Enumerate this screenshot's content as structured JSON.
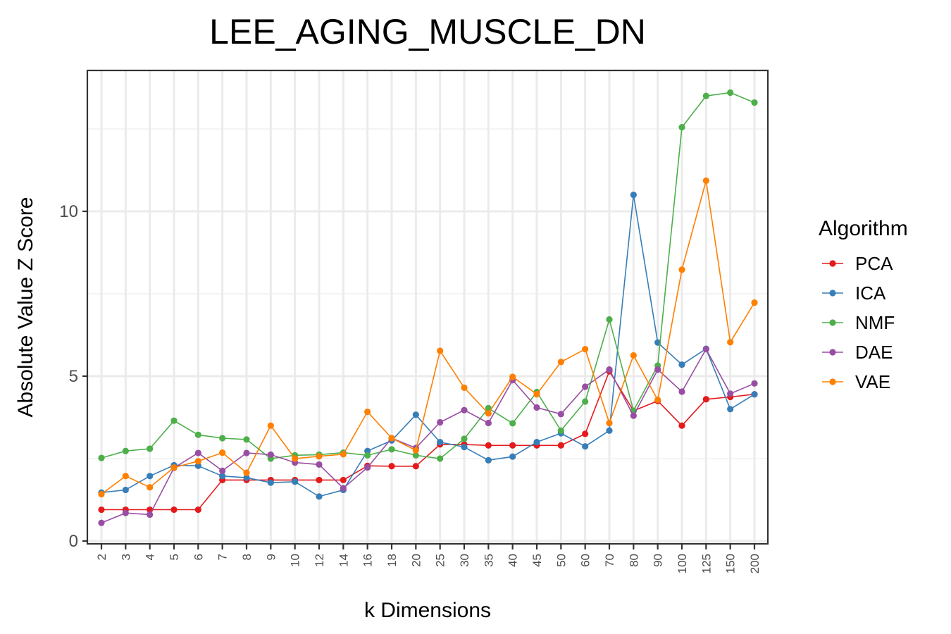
{
  "chart_data": {
    "type": "line",
    "title": "LEE_AGING_MUSCLE_DN",
    "xlabel": "k Dimensions",
    "ylabel": "Absolute Value Z Score",
    "ylim": [
      0,
      14
    ],
    "yticks": [
      0,
      5,
      10
    ],
    "grid": true,
    "legend": {
      "title": "Algorithm",
      "placement": "right"
    },
    "categories": [
      "2",
      "3",
      "4",
      "5",
      "6",
      "7",
      "8",
      "9",
      "10",
      "12",
      "14",
      "16",
      "18",
      "20",
      "25",
      "30",
      "35",
      "40",
      "45",
      "50",
      "60",
      "70",
      "80",
      "90",
      "100",
      "125",
      "150",
      "200"
    ],
    "series": [
      {
        "name": "PCA",
        "color": "#e41a1c",
        "values": [
          0.95,
          0.95,
          0.95,
          0.95,
          0.95,
          1.85,
          1.85,
          1.85,
          1.85,
          1.85,
          1.85,
          2.28,
          2.27,
          2.27,
          2.93,
          2.93,
          2.9,
          2.9,
          2.9,
          2.9,
          3.25,
          5.15,
          3.95,
          4.25,
          3.5,
          4.3,
          4.37,
          4.45
        ]
      },
      {
        "name": "ICA",
        "color": "#377eb8",
        "values": [
          1.47,
          1.55,
          1.97,
          2.3,
          2.28,
          1.97,
          1.92,
          1.77,
          1.8,
          1.35,
          1.55,
          2.73,
          3.05,
          3.83,
          3.0,
          2.85,
          2.45,
          2.56,
          3.0,
          3.27,
          2.87,
          3.35,
          10.5,
          6.02,
          5.35,
          5.83,
          4.0,
          4.45
        ]
      },
      {
        "name": "NMF",
        "color": "#4daf4a",
        "values": [
          2.52,
          2.73,
          2.8,
          3.65,
          3.22,
          3.12,
          3.08,
          2.5,
          2.6,
          2.62,
          2.68,
          2.6,
          2.78,
          2.6,
          2.5,
          3.1,
          4.03,
          3.57,
          4.52,
          3.35,
          4.23,
          6.72,
          3.95,
          5.32,
          12.55,
          13.5,
          13.6,
          13.3
        ]
      },
      {
        "name": "DAE",
        "color": "#984ea3",
        "values": [
          0.55,
          0.85,
          0.8,
          2.22,
          2.67,
          2.13,
          2.67,
          2.62,
          2.38,
          2.32,
          1.6,
          2.23,
          3.12,
          2.82,
          3.6,
          3.97,
          3.58,
          4.88,
          4.05,
          3.85,
          4.68,
          5.2,
          3.8,
          5.2,
          4.53,
          5.82,
          4.47,
          4.78
        ]
      },
      {
        "name": "VAE",
        "color": "#ff7f00",
        "values": [
          1.42,
          1.97,
          1.63,
          2.23,
          2.42,
          2.68,
          2.07,
          3.5,
          2.5,
          2.57,
          2.63,
          3.92,
          3.12,
          2.75,
          5.77,
          4.65,
          3.87,
          4.98,
          4.45,
          5.43,
          5.82,
          3.58,
          5.63,
          4.28,
          8.23,
          10.93,
          6.03,
          7.23
        ]
      }
    ]
  }
}
